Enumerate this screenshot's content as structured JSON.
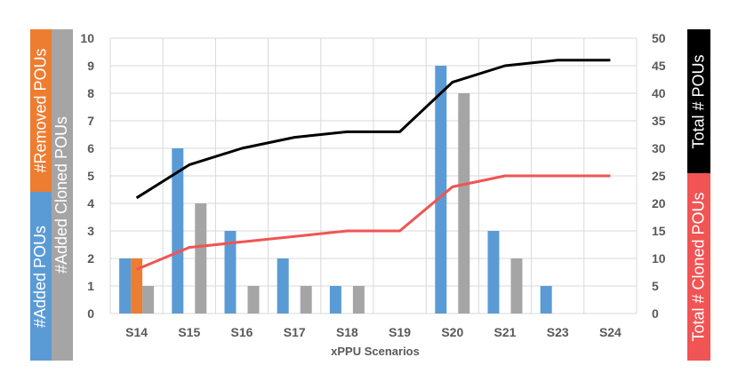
{
  "colors": {
    "added": "#5b9bd5",
    "removed": "#ed7d31",
    "cloned": "#a5a5a5",
    "total": "#000000",
    "total_cloned": "#f05454",
    "grid": "#d9d9d9",
    "tick_text": "#595959"
  },
  "axis_titles": {
    "left_added": "#Added POUs",
    "left_removed": "#Removed POUs",
    "left_cloned": "#Added Cloned POUs",
    "right_total": "Total # POUs",
    "right_total_cloned": "Total # Cloned POUs"
  },
  "chart_data": {
    "type": "bar",
    "xlabel": "xPPU Scenarios",
    "categories": [
      "S14",
      "S15",
      "S16",
      "S17",
      "S18",
      "S19",
      "S20",
      "S21",
      "S23",
      "S24"
    ],
    "ylim_left": [
      0,
      10
    ],
    "ylim_right": [
      0,
      50
    ],
    "yticks_left": [
      "0",
      "1",
      "2",
      "3",
      "4",
      "5",
      "6",
      "7",
      "8",
      "9",
      "10"
    ],
    "yticks_right": [
      "0",
      "5",
      "10",
      "15",
      "20",
      "25",
      "30",
      "35",
      "40",
      "45",
      "50"
    ],
    "grid": true,
    "bar_series": [
      {
        "key": "added",
        "values": [
          2,
          6,
          3,
          2,
          1,
          0,
          9,
          3,
          1,
          0
        ]
      },
      {
        "key": "removed",
        "values": [
          2,
          0,
          0,
          0,
          0,
          0,
          0,
          0,
          0,
          0
        ]
      },
      {
        "key": "cloned",
        "values": [
          1,
          4,
          1,
          1,
          1,
          0,
          8,
          2,
          0,
          0
        ]
      }
    ],
    "line_series": [
      {
        "key": "total",
        "axis": "right",
        "values": [
          21,
          27,
          30,
          32,
          33,
          33,
          42,
          45,
          46,
          46
        ]
      },
      {
        "key": "total_cloned",
        "axis": "right",
        "values": [
          8,
          12,
          13,
          14,
          15,
          15,
          23,
          25,
          25,
          25
        ]
      }
    ]
  }
}
